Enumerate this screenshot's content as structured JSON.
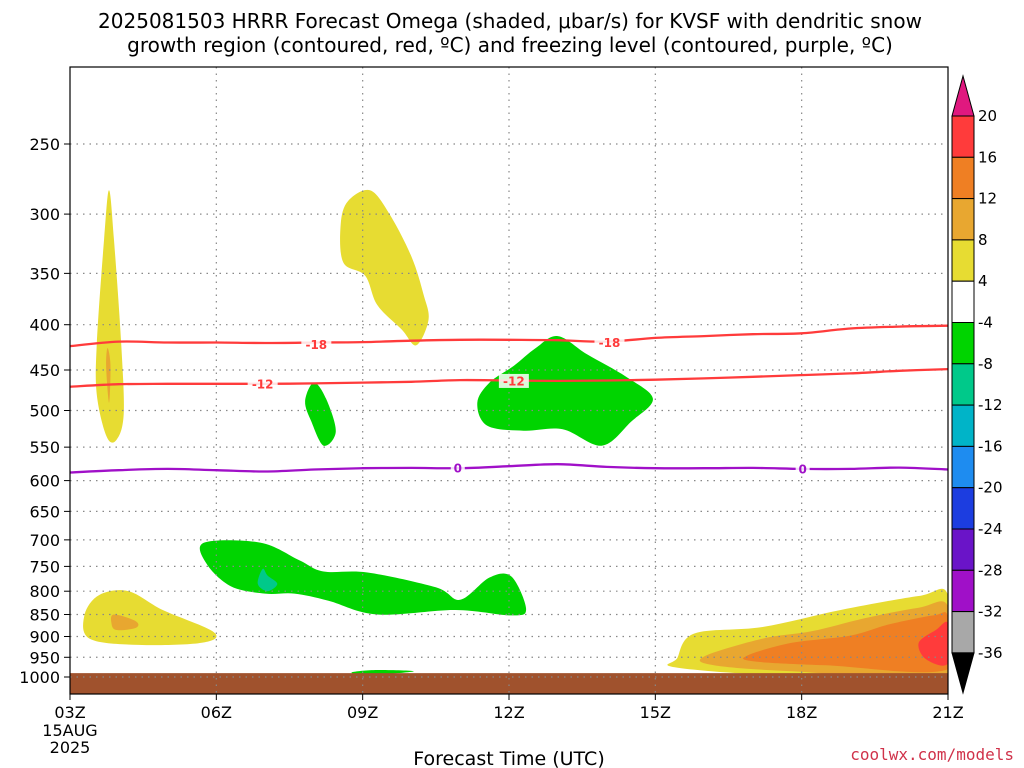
{
  "title_lines": [
    "2025081503 HRRR Forecast Omega (shaded, μbar/s) for KVSF with dendritic snow",
    "growth region (contoured, red, ºC) and freezing level (contoured, purple, ºC)"
  ],
  "credit": "coolwx.com/models",
  "chart_data": {
    "type": "heatmap",
    "title": "2025081503 HRRR Forecast Omega (shaded, μbar/s) for KVSF with dendritic snow growth region (contoured, red, ºC) and freezing level (contoured, purple, ºC)",
    "xlabel": "Forecast Time (UTC)",
    "ylabel": "",
    "x_ticks": [
      {
        "hour": 3,
        "label": "03Z",
        "sub": [
          "15AUG",
          "2025"
        ]
      },
      {
        "hour": 6,
        "label": "06Z"
      },
      {
        "hour": 9,
        "label": "09Z"
      },
      {
        "hour": 12,
        "label": "12Z"
      },
      {
        "hour": 15,
        "label": "15Z"
      },
      {
        "hour": 18,
        "label": "18Z"
      },
      {
        "hour": 21,
        "label": "21Z"
      }
    ],
    "xlim": [
      3,
      21
    ],
    "y_ticks": [
      250,
      300,
      350,
      400,
      450,
      500,
      550,
      600,
      650,
      700,
      750,
      800,
      850,
      900,
      950,
      1000
    ],
    "ylim": [
      1050,
      200
    ],
    "y_scale": "log",
    "grid": "dotted",
    "colorbar": {
      "labels": [
        "20",
        "16",
        "12",
        "8",
        "4",
        "-4",
        "-8",
        "-12",
        "-16",
        "-20",
        "-24",
        "-28",
        "-32",
        "-36"
      ],
      "colors": [
        "#e0187f",
        "#ff3b3b",
        "#ef7f23",
        "#e8a730",
        "#e7dc32",
        "#ffffff",
        "#00d400",
        "#00c98a",
        "#00b4c8",
        "#1e8cf0",
        "#1c3de0",
        "#6a14c8",
        "#a010c8",
        "#a8a8a8",
        "#000000"
      ]
    },
    "shaded_regions": [
      {
        "class": 4,
        "points": [
          [
            3.55,
            420
          ],
          [
            3.7,
            320
          ],
          [
            3.8,
            282
          ],
          [
            3.9,
            320
          ],
          [
            4.05,
            420
          ],
          [
            4.1,
            505
          ],
          [
            3.95,
            540
          ],
          [
            3.75,
            535
          ],
          [
            3.55,
            480
          ]
        ]
      },
      {
        "class": 8,
        "points": [
          [
            3.77,
            425
          ],
          [
            3.83,
            445
          ],
          [
            3.8,
            490
          ],
          [
            3.74,
            445
          ]
        ]
      },
      {
        "class": 4,
        "points": [
          [
            3.3,
            850
          ],
          [
            3.6,
            808
          ],
          [
            4.2,
            800
          ],
          [
            4.9,
            840
          ],
          [
            5.95,
            890
          ],
          [
            5.7,
            915
          ],
          [
            4.4,
            920
          ],
          [
            3.4,
            905
          ]
        ]
      },
      {
        "class": 8,
        "points": [
          [
            3.9,
            850
          ],
          [
            4.35,
            865
          ],
          [
            4.35,
            880
          ],
          [
            3.95,
            885
          ],
          [
            3.85,
            870
          ]
        ]
      },
      {
        "class": 4,
        "points": [
          [
            8.55,
            308
          ],
          [
            8.7,
            290
          ],
          [
            9.15,
            282
          ],
          [
            9.55,
            300
          ],
          [
            10,
            335
          ],
          [
            10.25,
            370
          ],
          [
            10.35,
            395
          ],
          [
            10.1,
            422
          ],
          [
            9.8,
            405
          ],
          [
            9.3,
            380
          ],
          [
            9.05,
            352
          ],
          [
            8.6,
            340
          ]
        ]
      },
      {
        "class": -4,
        "points": [
          [
            8.0,
            465
          ],
          [
            8.25,
            485
          ],
          [
            8.45,
            528
          ],
          [
            8.2,
            548
          ],
          [
            7.95,
            515
          ],
          [
            7.82,
            488
          ]
        ]
      },
      {
        "class": -4,
        "points": [
          [
            11.35,
            490
          ],
          [
            11.6,
            465
          ],
          [
            12.1,
            445
          ],
          [
            12.55,
            425
          ],
          [
            13.0,
            412
          ],
          [
            13.6,
            432
          ],
          [
            14.4,
            458
          ],
          [
            14.95,
            485
          ],
          [
            14.5,
            515
          ],
          [
            13.9,
            548
          ],
          [
            13.1,
            525
          ],
          [
            12.3,
            527
          ],
          [
            11.55,
            520
          ]
        ]
      },
      {
        "class": -4,
        "points": [
          [
            5.75,
            705
          ],
          [
            6.9,
            705
          ],
          [
            7.7,
            738
          ],
          [
            8.2,
            760
          ],
          [
            9.1,
            762
          ],
          [
            10.5,
            792
          ],
          [
            11.0,
            818
          ],
          [
            11.6,
            772
          ],
          [
            12.05,
            770
          ],
          [
            12.35,
            838
          ],
          [
            12.05,
            852
          ],
          [
            10.9,
            840
          ],
          [
            9.3,
            850
          ],
          [
            8.3,
            820
          ],
          [
            7.6,
            805
          ],
          [
            7.0,
            805
          ],
          [
            6.3,
            790
          ],
          [
            5.8,
            745
          ]
        ]
      },
      {
        "class": -8,
        "points": [
          [
            6.95,
            755
          ],
          [
            7.05,
            768
          ],
          [
            7.25,
            785
          ],
          [
            7.05,
            800
          ],
          [
            6.85,
            785
          ]
        ]
      },
      {
        "class": -4,
        "points": [
          [
            8.8,
            987
          ],
          [
            9.3,
            982
          ],
          [
            10.05,
            985
          ],
          [
            9.5,
            992
          ],
          [
            8.9,
            993
          ]
        ]
      },
      {
        "class": 4,
        "points": [
          [
            15.45,
            952
          ],
          [
            15.8,
            893
          ],
          [
            17.2,
            878
          ],
          [
            18.8,
            840
          ],
          [
            20.4,
            810
          ],
          [
            21,
            808
          ],
          [
            21,
            1000
          ],
          [
            17.5,
            995
          ],
          [
            15.4,
            975
          ]
        ]
      },
      {
        "class": 8,
        "points": [
          [
            16.0,
            948
          ],
          [
            17.2,
            905
          ],
          [
            18.2,
            888
          ],
          [
            19.3,
            858
          ],
          [
            20.4,
            835
          ],
          [
            21,
            832
          ],
          [
            21,
            995
          ],
          [
            17.8,
            985
          ],
          [
            16.2,
            970
          ]
        ]
      },
      {
        "class": 12,
        "points": [
          [
            16.9,
            945
          ],
          [
            17.8,
            915
          ],
          [
            19.0,
            898
          ],
          [
            19.8,
            872
          ],
          [
            20.7,
            852
          ],
          [
            21,
            855
          ],
          [
            21,
            980
          ],
          [
            18.5,
            970
          ],
          [
            17.0,
            960
          ]
        ]
      },
      {
        "class": 16,
        "points": [
          [
            20.4,
            915
          ],
          [
            20.75,
            885
          ],
          [
            21,
            870
          ],
          [
            21,
            965
          ],
          [
            20.55,
            955
          ]
        ]
      }
    ],
    "contours": [
      {
        "name": "-18",
        "color": "#ff3b3b",
        "label_positions": [
          [
            8.05,
            421
          ],
          [
            14.06,
            419
          ]
        ],
        "points": [
          [
            3,
            423
          ],
          [
            4,
            418
          ],
          [
            5,
            419
          ],
          [
            6,
            419
          ],
          [
            7,
            419.5
          ],
          [
            8,
            419
          ],
          [
            9,
            418.5
          ],
          [
            10,
            417
          ],
          [
            11,
            416
          ],
          [
            12,
            416
          ],
          [
            13,
            416.5
          ],
          [
            14,
            418
          ],
          [
            15,
            414
          ],
          [
            16,
            412
          ],
          [
            17,
            410
          ],
          [
            18,
            409
          ],
          [
            19,
            404
          ],
          [
            20,
            402
          ],
          [
            21,
            401
          ]
        ]
      },
      {
        "name": "-12",
        "color": "#ff3b3b",
        "label_positions": [
          [
            6.95,
            467
          ],
          [
            12.1,
            463
          ]
        ],
        "points": [
          [
            3,
            470
          ],
          [
            4,
            467
          ],
          [
            5,
            466.5
          ],
          [
            6,
            466.5
          ],
          [
            7,
            466.5
          ],
          [
            8,
            466
          ],
          [
            9,
            465
          ],
          [
            10,
            464
          ],
          [
            11,
            462
          ],
          [
            12,
            462.5
          ],
          [
            13,
            463
          ],
          [
            14,
            462.5
          ],
          [
            15,
            461.5
          ],
          [
            16,
            460
          ],
          [
            17,
            458
          ],
          [
            18,
            456
          ],
          [
            19,
            454
          ],
          [
            20,
            451
          ],
          [
            21,
            449
          ]
        ]
      },
      {
        "name": "0",
        "color": "#a010c8",
        "label_positions": [
          [
            10.95,
            581
          ],
          [
            18.02,
            582
          ]
        ],
        "points": [
          [
            3,
            587.5
          ],
          [
            4,
            584
          ],
          [
            5,
            582
          ],
          [
            6,
            584
          ],
          [
            7,
            586
          ],
          [
            8,
            583
          ],
          [
            9,
            581
          ],
          [
            10,
            580.5
          ],
          [
            11,
            581
          ],
          [
            12,
            578
          ],
          [
            13,
            575
          ],
          [
            14,
            579
          ],
          [
            15,
            581
          ],
          [
            16,
            581
          ],
          [
            17,
            580.5
          ],
          [
            18,
            582
          ],
          [
            19,
            582
          ],
          [
            20,
            580
          ],
          [
            21,
            583
          ]
        ]
      }
    ],
    "terrain": {
      "below_pressure": 990,
      "color": "#a0522d"
    }
  }
}
